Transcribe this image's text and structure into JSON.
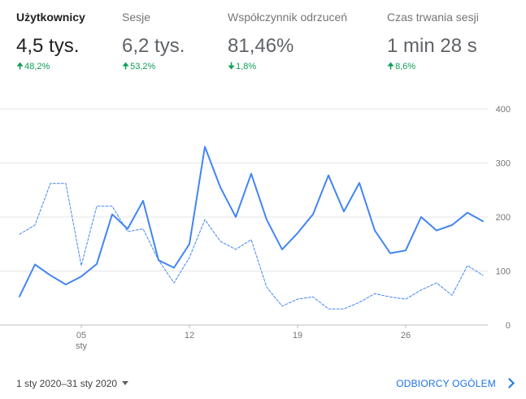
{
  "metrics": [
    {
      "label": "Użytkownicy",
      "value": "4,5 tys.",
      "change": "48,2%",
      "direction": "up",
      "active": true
    },
    {
      "label": "Sesje",
      "value": "6,2 tys.",
      "change": "53,2%",
      "direction": "up",
      "active": false
    },
    {
      "label": "Współczynnik odrzuceń",
      "value": "81,46%",
      "change": "1,8%",
      "direction": "down",
      "active": false
    },
    {
      "label": "Czas trwania sesji",
      "value": "1 min 28 s",
      "change": "8,6%",
      "direction": "up",
      "active": false
    }
  ],
  "footer": {
    "date_range": "1 sty 2020–31 sty 2020",
    "audience_link": "ODBIORCY OGÓLEM"
  },
  "colors": {
    "accent": "#4285f4",
    "positive": "#0f9d58",
    "link": "#1a73e8"
  },
  "icons": {
    "date_dropdown": "caret-down-icon",
    "audience_link": "chevron-right-icon"
  },
  "chart_data": {
    "type": "line",
    "x": [
      1,
      2,
      3,
      4,
      5,
      6,
      7,
      8,
      9,
      10,
      11,
      12,
      13,
      14,
      15,
      16,
      17,
      18,
      19,
      20,
      21,
      22,
      23,
      24,
      25,
      26,
      27,
      28,
      29,
      30,
      31
    ],
    "x_tick_labels": [
      {
        "x": 5,
        "label": "05",
        "sublabel": "sty"
      },
      {
        "x": 12,
        "label": "12",
        "sublabel": ""
      },
      {
        "x": 19,
        "label": "19",
        "sublabel": ""
      },
      {
        "x": 26,
        "label": "26",
        "sublabel": ""
      }
    ],
    "y_ticks": [
      0,
      100,
      200,
      300,
      400
    ],
    "y_tick_labels": [
      "0",
      "100",
      "200",
      "300",
      "400"
    ],
    "ylim": [
      0,
      400
    ],
    "xlim": [
      1,
      31
    ],
    "grid": true,
    "series": [
      {
        "role": "current",
        "color": "#4285f4",
        "style": "solid",
        "values": [
          53,
          112,
          92,
          75,
          90,
          113,
          205,
          178,
          230,
          120,
          106,
          150,
          330,
          255,
          200,
          280,
          195,
          140,
          170,
          205,
          277,
          210,
          263,
          175,
          133,
          138,
          200,
          175,
          185,
          208,
          192
        ]
      },
      {
        "role": "previous",
        "color": "#4285f4",
        "style": "dashed",
        "values": [
          168,
          185,
          262,
          262,
          110,
          220,
          220,
          173,
          178,
          120,
          78,
          125,
          195,
          155,
          140,
          158,
          70,
          35,
          48,
          52,
          30,
          30,
          42,
          58,
          52,
          48,
          65,
          78,
          55,
          110,
          92
        ]
      }
    ]
  }
}
